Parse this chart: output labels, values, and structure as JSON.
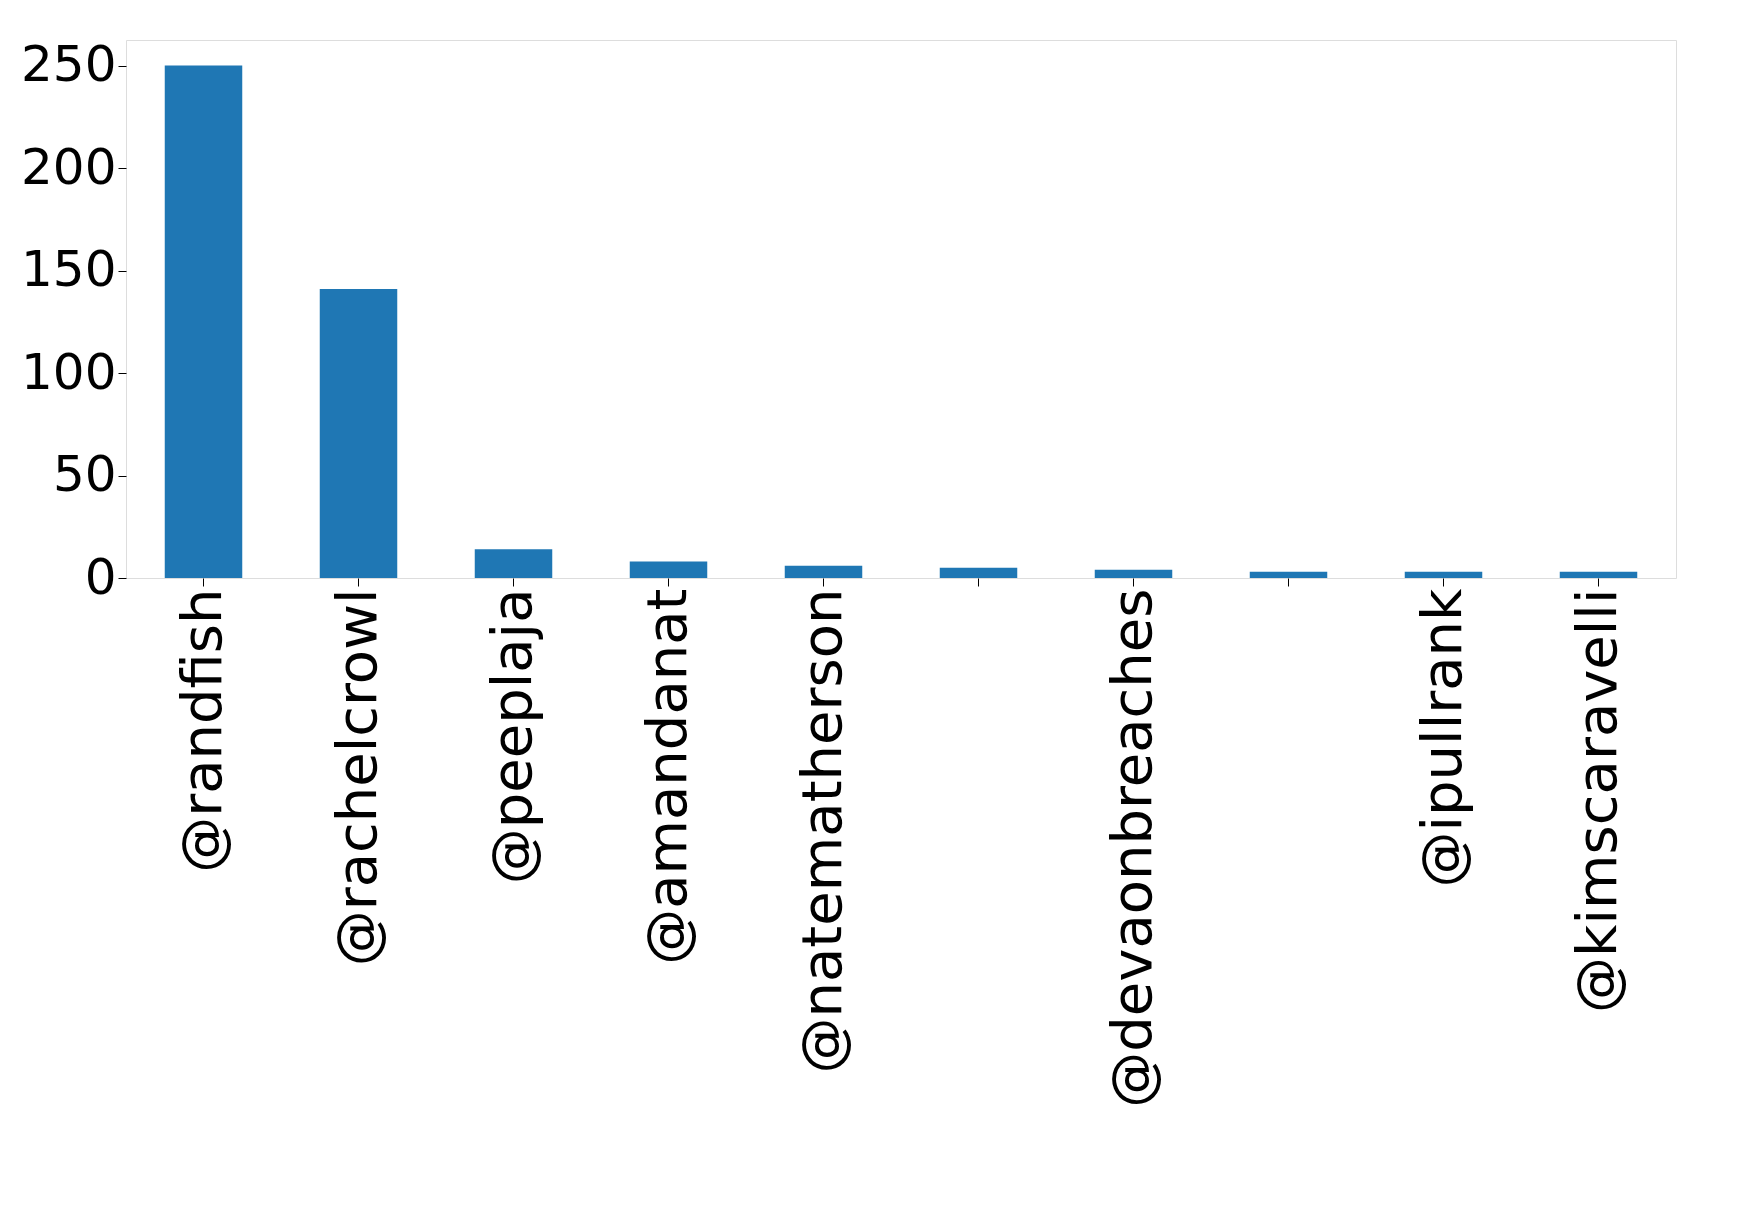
{
  "chart_data": {
    "type": "bar",
    "categories": [
      "@randfish",
      "@rachelcrowl",
      "@peeplaja",
      "@amandanat",
      "@natematherson",
      null,
      "@devaonbreaches",
      null,
      "@ipullrank",
      "@kimscaravelli"
    ],
    "values": [
      250,
      141,
      14,
      8,
      6,
      5,
      4,
      3,
      3,
      3
    ],
    "color": "#1f77b4",
    "ylim": [
      0,
      262.5
    ],
    "yticks": [
      0,
      50,
      100,
      150,
      200,
      250
    ],
    "grid": false
  }
}
